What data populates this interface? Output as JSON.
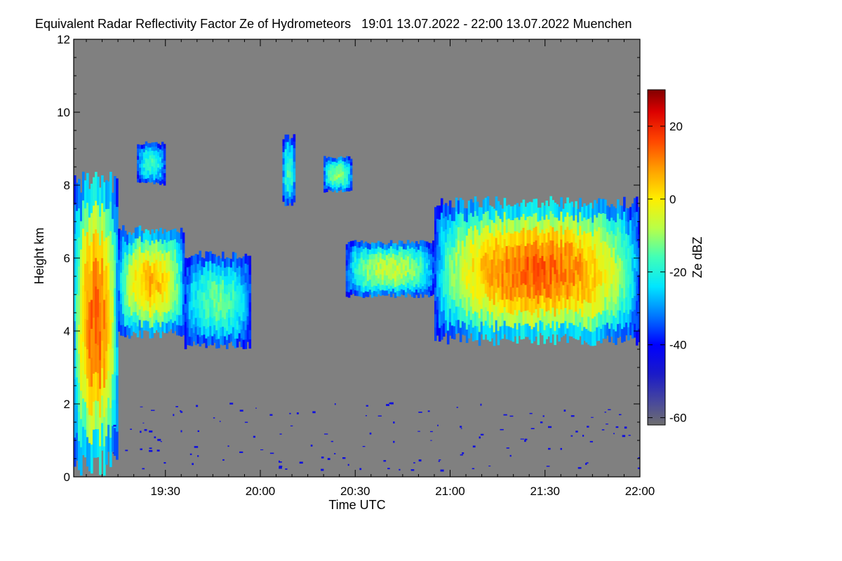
{
  "chart_data": {
    "type": "heatmap",
    "title": "Equivalent Radar Reflectivity Factor Ze of Hydrometeors   19:01 13.07.2022 - 22:00 13.07.2022 Muenchen",
    "xlabel": "Time UTC",
    "ylabel": "Height km",
    "x_range_minutes_utc": [
      1141,
      1320
    ],
    "xticks": [
      {
        "minute": 1170,
        "label": "19:30"
      },
      {
        "minute": 1200,
        "label": "20:00"
      },
      {
        "minute": 1230,
        "label": "20:30"
      },
      {
        "minute": 1260,
        "label": "21:00"
      },
      {
        "minute": 1290,
        "label": "21:30"
      },
      {
        "minute": 1320,
        "label": "22:00"
      }
    ],
    "ylim": [
      0,
      12
    ],
    "yticks": [
      0,
      2,
      4,
      6,
      8,
      10,
      12
    ],
    "colorbar": {
      "label": "Ze dBZ",
      "range": [
        -62,
        30
      ],
      "ticks": [
        20,
        0,
        -20,
        -40,
        -60
      ],
      "stops": [
        {
          "dbz": -62,
          "color": "#6e6e6e"
        },
        {
          "dbz": -56,
          "color": "#4a4a9a"
        },
        {
          "dbz": -48,
          "color": "#1a1ac8"
        },
        {
          "dbz": -40,
          "color": "#0000ff"
        },
        {
          "dbz": -32,
          "color": "#0078ff"
        },
        {
          "dbz": -24,
          "color": "#00e6ff"
        },
        {
          "dbz": -16,
          "color": "#40ffb8"
        },
        {
          "dbz": -8,
          "color": "#b8ff48"
        },
        {
          "dbz": 0,
          "color": "#ffee00"
        },
        {
          "dbz": 8,
          "color": "#ffa000"
        },
        {
          "dbz": 16,
          "color": "#ff4600"
        },
        {
          "dbz": 24,
          "color": "#dc0000"
        },
        {
          "dbz": 30,
          "color": "#820000"
        }
      ]
    },
    "background_color": "#808080",
    "echoes": [
      {
        "name": "precip-column-left",
        "t0": 1141,
        "t1": 1155,
        "z0": 0,
        "z1": 8.5,
        "peak_dbz": 14
      },
      {
        "name": "anvil-block-1",
        "t0": 1155,
        "t1": 1176,
        "z0": 3.8,
        "z1": 6.9,
        "peak_dbz": 6
      },
      {
        "name": "anvil-block-2",
        "t0": 1176,
        "t1": 1197,
        "z0": 3.5,
        "z1": 6.2,
        "peak_dbz": -14
      },
      {
        "name": "anvil-block-3",
        "t0": 1227,
        "t1": 1255,
        "z0": 4.9,
        "z1": 6.5,
        "peak_dbz": -6
      },
      {
        "name": "anvil-block-4",
        "t0": 1255,
        "t1": 1320,
        "z0": 3.6,
        "z1": 7.7,
        "peak_dbz": 14
      },
      {
        "name": "upper-cloud-a",
        "t0": 1161,
        "t1": 1170,
        "z0": 8.0,
        "z1": 9.2,
        "peak_dbz": -18
      },
      {
        "name": "upper-cloud-b",
        "t0": 1220,
        "t1": 1229,
        "z0": 7.8,
        "z1": 8.8,
        "peak_dbz": -10
      },
      {
        "name": "upper-cloud-c",
        "t0": 1207,
        "t1": 1211,
        "z0": 7.4,
        "z1": 9.4,
        "peak_dbz": -16
      }
    ],
    "low_level_noise_dbz": -45
  }
}
